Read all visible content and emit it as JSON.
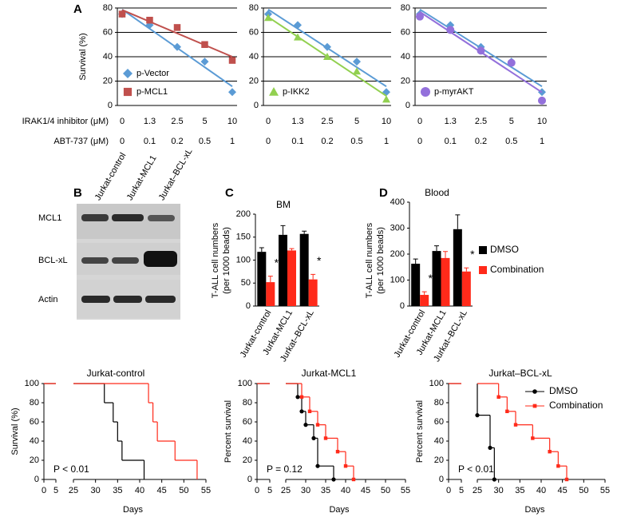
{
  "chart_data": [
    {
      "type": "scatter",
      "panel": "A",
      "y_label": "Survival (%)",
      "ylim": [
        0,
        80
      ],
      "yticks": [
        0,
        20,
        40,
        60,
        80
      ],
      "grid": true,
      "trendline": true,
      "legend": "lower left",
      "category_titles": [
        "IRAK1/4 inhibitor (μM)",
        "ABT-737 (μM)"
      ],
      "categories": [
        "0",
        "1.3",
        "2.5",
        "5",
        "10"
      ],
      "categories2": [
        "0",
        "0.1",
        "0.2",
        "0.5",
        "1"
      ],
      "series": [
        {
          "name": "p-Vector",
          "color": "#5b9bd5",
          "marker": "diamond",
          "values": [
            75,
            66,
            48,
            36,
            11
          ]
        },
        {
          "name": "p-MCL1",
          "color": "#c0504d",
          "marker": "square",
          "values": [
            75,
            70,
            64,
            50,
            37
          ]
        }
      ]
    },
    {
      "type": "scatter",
      "ylim": [
        0,
        80
      ],
      "yticks": [
        0,
        20,
        40,
        60,
        80
      ],
      "grid": true,
      "trendline": true,
      "legend": "lower left",
      "categories": [
        "0",
        "1.3",
        "2.5",
        "5",
        "10"
      ],
      "categories2": [
        "0",
        "0.1",
        "0.2",
        "0.5",
        "1"
      ],
      "series": [
        {
          "color": "#5b9bd5",
          "marker": "diamond",
          "values": [
            75,
            66,
            48,
            36,
            11
          ]
        },
        {
          "name": "p-IKK2",
          "color": "#92d050",
          "marker": "triangle",
          "values": [
            72,
            56,
            40,
            28,
            5
          ]
        }
      ]
    },
    {
      "type": "scatter",
      "ylim": [
        0,
        80
      ],
      "yticks": [
        0,
        20,
        40,
        60,
        80
      ],
      "grid": true,
      "trendline": true,
      "legend": "lower left",
      "categories": [
        "0",
        "1.3",
        "2.5",
        "5",
        "10"
      ],
      "categories2": [
        "0",
        "0.1",
        "0.2",
        "0.5",
        "1"
      ],
      "series": [
        {
          "color": "#5b9bd5",
          "marker": "diamond",
          "values": [
            75,
            66,
            48,
            36,
            11
          ]
        },
        {
          "name": "p-myrAKT",
          "color": "#9370db",
          "marker": "circle",
          "values": [
            73,
            62,
            45,
            35,
            4
          ]
        }
      ]
    },
    {
      "type": "bar",
      "panel": "C",
      "title": "BM",
      "y_label": [
        "T-ALL cell numbers",
        "(per 1000 beads)"
      ],
      "ylim": [
        0,
        200
      ],
      "yticks": [
        0,
        50,
        100,
        150,
        200
      ],
      "categories": [
        "Jurkat-control",
        "Jurkat-MCL1",
        "Jurkat–BCL-xL"
      ],
      "significance": [
        "*",
        null,
        "*"
      ],
      "series": [
        {
          "color": "#000000",
          "values": [
            118,
            155,
            157
          ],
          "errors": [
            9,
            20,
            6
          ]
        },
        {
          "color": "#ff2a1a",
          "values": [
            52,
            121,
            58
          ],
          "errors": [
            13,
            4,
            11
          ]
        }
      ]
    },
    {
      "type": "bar",
      "panel": "D",
      "title": "Blood",
      "y_label": [
        "T-ALL cell numbers",
        "(per 1000 beads)"
      ],
      "ylim": [
        0,
        400
      ],
      "yticks": [
        0,
        100,
        200,
        300,
        400
      ],
      "legend": "right",
      "categories": [
        "Jurkat-control",
        "Jurkat-MCL1",
        "Jurkat–BCL-xL"
      ],
      "significance": [
        "*",
        null,
        "*"
      ],
      "series": [
        {
          "name": "DMSO",
          "color": "#000000",
          "values": [
            163,
            212,
            296
          ],
          "errors": [
            18,
            20,
            55
          ]
        },
        {
          "name": "Combination",
          "color": "#ff2a1a",
          "values": [
            43,
            185,
            133
          ],
          "errors": [
            12,
            25,
            14
          ]
        }
      ]
    },
    {
      "type": "step",
      "title": "Jurkat-control",
      "y_label": "Survival (%)",
      "x_label": "Days",
      "annotation": "P < 0.01",
      "markers": false,
      "xlim": [
        0,
        55
      ],
      "axis_break": [
        5,
        25
      ],
      "xticks": [
        0,
        5,
        25,
        30,
        35,
        40,
        45,
        50,
        55
      ],
      "ylim": [
        0,
        100
      ],
      "yticks": [
        0,
        20,
        40,
        60,
        80,
        100
      ],
      "series": [
        {
          "color": "#000000",
          "x": [
            0,
            32,
            34,
            35,
            36,
            41
          ],
          "values": [
            100,
            80,
            60,
            40,
            20,
            0
          ]
        },
        {
          "color": "#ff2a1a",
          "x": [
            0,
            42,
            43,
            44,
            48,
            53
          ],
          "values": [
            100,
            80,
            60,
            40,
            20,
            0
          ]
        }
      ]
    },
    {
      "type": "step",
      "title": "Jurkat-MCL1",
      "y_label": "Percent survival",
      "x_label": "Days",
      "annotation": "P = 0.12",
      "markers": true,
      "xlim": [
        0,
        55
      ],
      "axis_break": [
        5,
        25
      ],
      "xticks": [
        0,
        5,
        25,
        30,
        35,
        40,
        45,
        50,
        55
      ],
      "ylim": [
        0,
        100
      ],
      "yticks": [
        0,
        20,
        40,
        60,
        80,
        100
      ],
      "series": [
        {
          "color": "#000000",
          "marker": "circle",
          "x": [
            0,
            28,
            29,
            30,
            32,
            33,
            37
          ],
          "values": [
            100,
            86,
            71,
            57,
            43,
            14,
            0
          ]
        },
        {
          "color": "#ff2a1a",
          "marker": "square",
          "x": [
            0,
            29,
            31,
            33,
            35,
            38,
            40,
            42
          ],
          "values": [
            100,
            86,
            71,
            57,
            43,
            29,
            14,
            0
          ]
        }
      ]
    },
    {
      "type": "step",
      "title": "Jurkat–BCL-xL",
      "y_label": "Percent survival",
      "x_label": "Days",
      "annotation": "P < 0.01",
      "markers": true,
      "legend": "upper right",
      "xlim": [
        0,
        55
      ],
      "axis_break": [
        5,
        25
      ],
      "xticks": [
        0,
        5,
        25,
        30,
        35,
        40,
        45,
        50,
        55
      ],
      "ylim": [
        0,
        100
      ],
      "yticks": [
        0,
        20,
        40,
        60,
        80,
        100
      ],
      "series": [
        {
          "name": "DMSO",
          "color": "#000000",
          "marker": "circle",
          "x": [
            0,
            25,
            28,
            29
          ],
          "values": [
            100,
            67,
            33,
            0
          ]
        },
        {
          "name": "Combination",
          "color": "#ff2a1a",
          "marker": "square",
          "x": [
            0,
            30,
            32,
            34,
            38,
            42,
            44,
            46
          ],
          "values": [
            100,
            86,
            71,
            57,
            43,
            29,
            14,
            0
          ]
        }
      ]
    }
  ],
  "blot": {
    "panel": "B",
    "lanes": [
      "Jurkat-control",
      "Jurkat-MCL1",
      "Jurkat–BCL-xL"
    ],
    "rows": [
      "MCL1",
      "BCL-xL",
      "Actin"
    ]
  }
}
